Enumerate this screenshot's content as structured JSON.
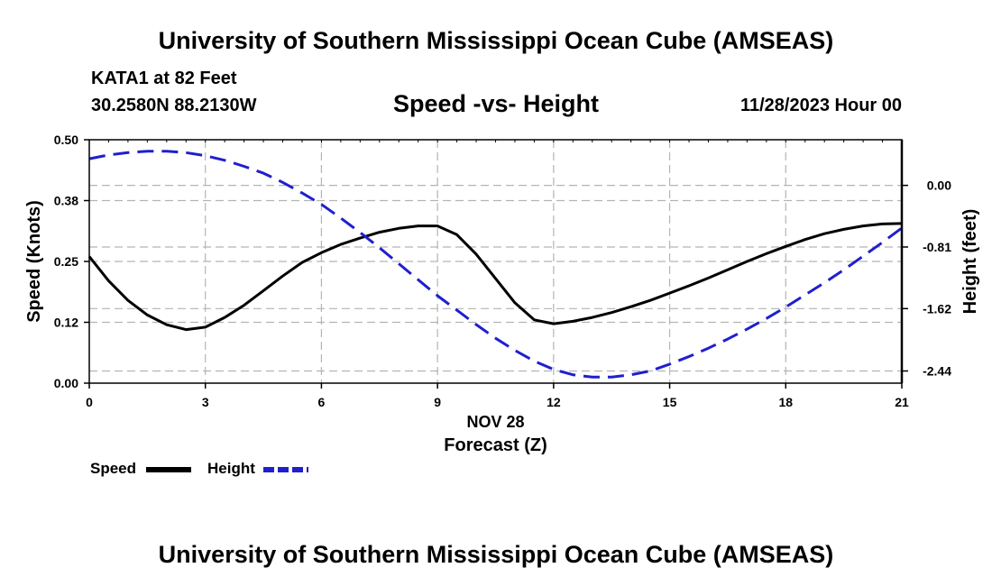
{
  "header": {
    "title": "University of Southern Mississippi Ocean Cube (AMSEAS)",
    "station": "KATA1 at 82 Feet",
    "coords": "30.2580N  88.2130W",
    "date_hour": "11/28/2023 Hour 00"
  },
  "footer": {
    "title": "University of Southern Mississippi Ocean Cube (AMSEAS)"
  },
  "colors": {
    "speed": "#000000",
    "height": "#1f1fcf",
    "grid": "#b4b4b4"
  },
  "chart_data": {
    "type": "line",
    "title": "Speed -vs- Height",
    "xlabel": "Forecast (Z)",
    "xlabel_date": "NOV 28",
    "ylabel": "Speed (Knots)",
    "ylabel_right": "Height (feet)",
    "xlim": [
      0,
      21
    ],
    "ylim": [
      0,
      0.5
    ],
    "ylim_right": [
      -2.6,
      0.6
    ],
    "x_ticks": [
      0,
      3,
      6,
      9,
      12,
      15,
      18,
      21
    ],
    "x_tick_labels": [
      "0",
      "3",
      "6",
      "9",
      "12",
      "15",
      "18",
      "21"
    ],
    "y_ticks": [
      0,
      0.125,
      0.25,
      0.375,
      0.5
    ],
    "y_tick_labels": [
      "0.00",
      "0.12",
      "0.25",
      "0.38",
      "0.50"
    ],
    "y_right_ticks": [
      0,
      -0.81,
      -1.62,
      -2.44
    ],
    "y_right_tick_labels": [
      "0.00",
      "-0.81",
      "-1.62",
      "-2.44"
    ],
    "grid": true,
    "series": [
      {
        "name": "Speed",
        "axis": "left",
        "style": "solid",
        "x": [
          0,
          0.5,
          1,
          1.5,
          2,
          2.5,
          3,
          3.5,
          4,
          4.5,
          5,
          5.5,
          6,
          6.5,
          7,
          7.5,
          8,
          8.5,
          9,
          9.5,
          10,
          10.5,
          11,
          11.5,
          12,
          12.5,
          13,
          13.5,
          14,
          14.5,
          15,
          15.5,
          16,
          16.5,
          17,
          17.5,
          18,
          18.5,
          19,
          19.5,
          20,
          20.5,
          21
        ],
        "values": [
          0.26,
          0.21,
          0.17,
          0.14,
          0.12,
          0.11,
          0.115,
          0.135,
          0.16,
          0.19,
          0.22,
          0.248,
          0.268,
          0.285,
          0.298,
          0.31,
          0.318,
          0.323,
          0.323,
          0.305,
          0.265,
          0.215,
          0.165,
          0.13,
          0.122,
          0.127,
          0.135,
          0.145,
          0.157,
          0.17,
          0.185,
          0.2,
          0.216,
          0.233,
          0.25,
          0.266,
          0.281,
          0.295,
          0.307,
          0.316,
          0.323,
          0.327,
          0.328
        ]
      },
      {
        "name": "Height",
        "axis": "right",
        "style": "dashed",
        "x": [
          0,
          0.5,
          1,
          1.5,
          2,
          2.5,
          3,
          3.5,
          4,
          4.5,
          5,
          5.5,
          6,
          6.5,
          7,
          7.5,
          8,
          8.5,
          9,
          9.5,
          10,
          10.5,
          11,
          11.5,
          12,
          12.5,
          13,
          13.5,
          14,
          14.5,
          15,
          15.5,
          16,
          16.5,
          17,
          17.5,
          18,
          18.5,
          19,
          19.5,
          20,
          20.5,
          21
        ],
        "values": [
          0.35,
          0.4,
          0.43,
          0.45,
          0.45,
          0.43,
          0.39,
          0.33,
          0.25,
          0.16,
          0.04,
          -0.1,
          -0.25,
          -0.43,
          -0.62,
          -0.82,
          -1.03,
          -1.24,
          -1.45,
          -1.64,
          -1.83,
          -2.01,
          -2.17,
          -2.31,
          -2.42,
          -2.49,
          -2.52,
          -2.52,
          -2.49,
          -2.44,
          -2.35,
          -2.25,
          -2.14,
          -2.02,
          -1.89,
          -1.75,
          -1.6,
          -1.44,
          -1.28,
          -1.11,
          -0.93,
          -0.75,
          -0.56
        ]
      }
    ],
    "legend": [
      {
        "label": "Speed",
        "style": "solid"
      },
      {
        "label": "Height",
        "style": "dashed"
      }
    ],
    "legend_position": "bottom-left"
  }
}
